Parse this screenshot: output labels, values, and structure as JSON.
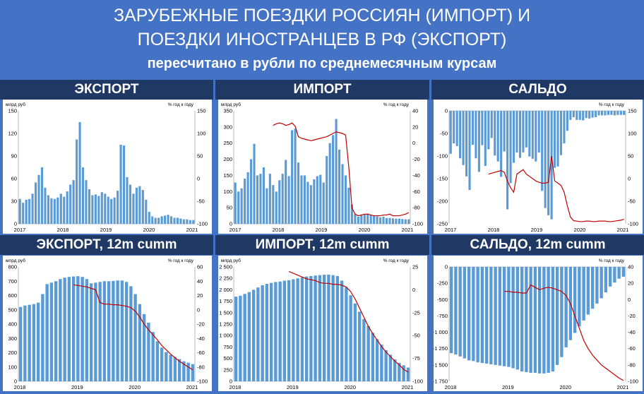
{
  "header": {
    "title_line1": "ЗАРУБЕЖНЫЕ ПОЕЗДКИ РОССИЯН (ИМПОРТ) И",
    "title_line2": "ПОЕЗДКИ ИНОСТРАНЦЕВ В РФ (ЭКСПОРТ)",
    "subtitle": "пересчитано в рубли по среднемесячным курсам"
  },
  "colors": {
    "background": "#4472c4",
    "section_bar": "#1f3864",
    "bars": "#5b9bd5",
    "line": "#c00000"
  },
  "chart_data": [
    {
      "id": "export-monthly",
      "type": "bar",
      "title": "ЭКСПОРТ",
      "ylabel_left": "млрд руб",
      "ylabel_right": "% год к году",
      "xticks": [
        "2017",
        "2018",
        "2019",
        "2020",
        "2021"
      ],
      "ylim": [
        0,
        150
      ],
      "yticks": [
        "0",
        "30",
        "60",
        "90",
        "120",
        "150"
      ],
      "ylim_right": [
        -100,
        150
      ],
      "yticks_right": [
        "-100",
        "-50",
        "0",
        "50",
        "100",
        "150"
      ],
      "series": [
        {
          "kind": "bar",
          "values": [
            33,
            28,
            32,
            33,
            40,
            55,
            65,
            75,
            48,
            38,
            34,
            33,
            35,
            40,
            36,
            43,
            52,
            58,
            112,
            135,
            75,
            58,
            46,
            38,
            39,
            37,
            42,
            40,
            36,
            33,
            35,
            44,
            105,
            104,
            62,
            52,
            40,
            48,
            50,
            45,
            32,
            16,
            10,
            8,
            8,
            10,
            11,
            12,
            10,
            8,
            8,
            7,
            6,
            6,
            5,
            5
          ]
        },
        {
          "kind": "line",
          "axis": "right",
          "values": [
            null,
            null,
            null,
            null,
            null,
            null,
            null,
            null,
            null,
            null,
            null,
            null,
            null,
            null,
            null,
            null,
            null,
            null,
            null,
            null,
            null,
            null,
            null,
            null,
            null,
            null,
            null,
            null,
            null,
            null,
            null,
            null,
            null,
            null,
            null,
            null,
            null,
            null,
            null,
            null,
            null,
            null,
            null,
            null,
            null,
            null,
            null,
            null,
            null,
            null,
            null,
            null,
            null,
            null,
            null,
            null
          ]
        }
      ]
    },
    {
      "id": "import-monthly",
      "type": "bar",
      "title": "ИМПОРТ",
      "ylabel_left": "млрд руб",
      "ylabel_right": "% год к году",
      "xticks": [
        "2017",
        "2018",
        "2019",
        "2020",
        "2021"
      ],
      "ylim": [
        0,
        350
      ],
      "yticks": [
        "0",
        "50",
        "100",
        "150",
        "200",
        "250",
        "300",
        "350"
      ],
      "ylim_right": [
        -100,
        40
      ],
      "yticks_right": [
        "-100",
        "-80",
        "-60",
        "-40",
        "-20",
        "0",
        "20",
        "40"
      ],
      "series": [
        {
          "kind": "bar",
          "values": [
            128,
            100,
            110,
            140,
            160,
            200,
            248,
            150,
            155,
            175,
            110,
            155,
            120,
            100,
            135,
            155,
            198,
            148,
            290,
            295,
            190,
            150,
            150,
            130,
            120,
            138,
            148,
            152,
            128,
            210,
            250,
            275,
            325,
            230,
            185,
            150,
            112,
            60,
            30,
            22,
            28,
            30,
            32,
            28,
            25,
            23,
            20,
            22,
            18,
            18,
            17,
            16,
            16,
            15,
            14,
            14
          ]
        },
        {
          "kind": "line",
          "axis": "right",
          "values": [
            null,
            null,
            null,
            null,
            null,
            null,
            null,
            null,
            null,
            null,
            null,
            null,
            22,
            24,
            25,
            24,
            22,
            23,
            25,
            21,
            8,
            6,
            5,
            4,
            3,
            4,
            5,
            6,
            7,
            8,
            10,
            12,
            14,
            13,
            12,
            10,
            -30,
            -80,
            -88,
            -90,
            -89,
            -88,
            -88,
            -89,
            -90,
            -90,
            -90,
            -89,
            -89,
            -88,
            -90,
            -90,
            -90,
            -89,
            -88,
            -86
          ]
        }
      ]
    },
    {
      "id": "saldo-monthly",
      "type": "bar",
      "title": "САЛЬДО",
      "ylabel_right": "% год к году",
      "xticks": [
        "2017",
        "2018",
        "2019",
        "2020",
        "2021"
      ],
      "ylim": [
        -250,
        0
      ],
      "yticks": [
        "0",
        "-50",
        "-100",
        "-150",
        "-200",
        "-250"
      ],
      "ylim_right": [
        -100,
        150
      ],
      "yticks_right": [
        "-100",
        "-50",
        "0",
        "50",
        "100",
        "150"
      ],
      "series": [
        {
          "kind": "bar",
          "values": [
            -95,
            -72,
            -78,
            -105,
            -120,
            -145,
            -175,
            -75,
            -105,
            -135,
            -76,
            -122,
            -85,
            -60,
            -99,
            -112,
            -146,
            -90,
            -218,
            -160,
            -115,
            -92,
            -104,
            -92,
            -81,
            -101,
            -106,
            -112,
            -92,
            -177,
            -215,
            -231,
            -240,
            -126,
            -123,
            -98,
            -72,
            -44,
            -20,
            -14,
            -20,
            -20,
            -21,
            -16,
            -17,
            -15,
            -14,
            -10,
            -10,
            -10,
            -9,
            -9,
            -10,
            -9,
            -9,
            -9
          ]
        },
        {
          "kind": "line",
          "axis": "right",
          "values": [
            null,
            null,
            null,
            null,
            null,
            null,
            null,
            null,
            null,
            null,
            null,
            null,
            10,
            12,
            14,
            16,
            18,
            14,
            -5,
            -20,
            -30,
            10,
            15,
            20,
            10,
            5,
            0,
            -5,
            -8,
            -10,
            -10,
            -8,
            50,
            -5,
            -10,
            -15,
            -30,
            -60,
            -85,
            -93,
            -94,
            -95,
            -95,
            -94,
            -94,
            -95,
            -95,
            -94,
            -94,
            -94,
            -95,
            -95,
            -94,
            -93,
            -92,
            -90
          ]
        }
      ]
    },
    {
      "id": "export-12m",
      "type": "bar",
      "title": "ЭКСПОРТ, 12m cumm",
      "ylabel_left": "млрд руб",
      "ylabel_right": "% год к году",
      "xticks": [
        "2018",
        "2019",
        "2020",
        "2021"
      ],
      "ylim": [
        0,
        800
      ],
      "yticks": [
        "0",
        "100",
        "200",
        "300",
        "400",
        "500",
        "600",
        "700",
        "800"
      ],
      "ylim_right": [
        -100,
        60
      ],
      "yticks_right": [
        "-100",
        "-80",
        "-60",
        "-40",
        "-20",
        "0",
        "20",
        "40",
        "60"
      ],
      "series": [
        {
          "kind": "bar",
          "values": [
            520,
            530,
            535,
            540,
            550,
            610,
            680,
            690,
            700,
            715,
            725,
            730,
            733,
            735,
            730,
            715,
            685,
            690,
            695,
            700,
            700,
            702,
            705,
            705,
            695,
            665,
            610,
            540,
            470,
            410,
            345,
            280,
            235,
            205,
            185,
            170,
            155,
            140,
            130,
            120
          ]
        },
        {
          "kind": "line",
          "axis": "right",
          "values": [
            null,
            null,
            null,
            null,
            null,
            null,
            null,
            null,
            null,
            null,
            null,
            null,
            35,
            34,
            33,
            32,
            30,
            28,
            10,
            8,
            8,
            7,
            7,
            6,
            5,
            3,
            -2,
            -10,
            -20,
            -28,
            -35,
            -42,
            -50,
            -56,
            -62,
            -67,
            -72,
            -76,
            -80,
            -84
          ]
        }
      ]
    },
    {
      "id": "import-12m",
      "type": "bar",
      "title": "ИМПОРТ, 12m cumm",
      "ylabel_left": "млрд руб",
      "ylabel_right": "% год к году",
      "xticks": [
        "2018",
        "2019",
        "2020",
        "2021"
      ],
      "ylim": [
        0,
        2500
      ],
      "yticks": [
        "0",
        "250",
        "500",
        "750",
        "1 000",
        "1 250",
        "1 500",
        "1 750",
        "2 000",
        "2 250",
        "2 500"
      ],
      "ylim_right": [
        -100,
        25
      ],
      "yticks_right": [
        "-100",
        "-75",
        "-50",
        "-25",
        "0",
        "25"
      ],
      "series": [
        {
          "kind": "bar",
          "values": [
            1850,
            1870,
            1910,
            1950,
            2000,
            2050,
            2100,
            2130,
            2150,
            2170,
            2180,
            2200,
            2210,
            2230,
            2250,
            2270,
            2290,
            2300,
            2310,
            2320,
            2330,
            2330,
            2320,
            2300,
            2200,
            2050,
            1880,
            1700,
            1520,
            1360,
            1210,
            1060,
            920,
            800,
            680,
            580,
            480,
            400,
            350,
            300
          ]
        },
        {
          "kind": "line",
          "axis": "right",
          "values": [
            null,
            null,
            null,
            null,
            null,
            null,
            null,
            null,
            null,
            null,
            null,
            null,
            20,
            18,
            16,
            14,
            12,
            11,
            10,
            8,
            7,
            7,
            6,
            6,
            5,
            3,
            -2,
            -10,
            -20,
            -30,
            -40,
            -48,
            -55,
            -62,
            -68,
            -73,
            -78,
            -82,
            -87,
            -90
          ]
        }
      ]
    },
    {
      "id": "saldo-12m",
      "type": "bar",
      "title": "САЛЬДО, 12m cumm",
      "ylabel_right": "% год к году",
      "xticks": [
        "2018",
        "2019",
        "2020",
        "2021"
      ],
      "ylim": [
        -1750,
        0
      ],
      "yticks": [
        "0",
        "-250",
        "-500",
        "-750",
        "-1 000",
        "-1 250",
        "-1 500",
        "-1 750"
      ],
      "ylim_right": [
        -100,
        40
      ],
      "yticks_right": [
        "-100",
        "-80",
        "-60",
        "-40",
        "-20",
        "0",
        "20",
        "40"
      ],
      "series": [
        {
          "kind": "bar",
          "values": [
            -1320,
            -1340,
            -1370,
            -1400,
            -1430,
            -1440,
            -1460,
            -1470,
            -1480,
            -1490,
            -1500,
            -1510,
            -1520,
            -1530,
            -1550,
            -1570,
            -1600,
            -1610,
            -1620,
            -1620,
            -1630,
            -1630,
            -1620,
            -1600,
            -1500,
            -1380,
            -1230,
            -1120,
            -1010,
            -910,
            -820,
            -730,
            -640,
            -560,
            -480,
            -390,
            -300,
            -240,
            -180,
            -150
          ]
        },
        {
          "kind": "line",
          "axis": "right",
          "values": [
            null,
            null,
            null,
            null,
            null,
            null,
            null,
            null,
            null,
            null,
            null,
            null,
            10,
            10,
            9,
            9,
            8,
            8,
            18,
            15,
            12,
            14,
            15,
            14,
            12,
            10,
            5,
            -5,
            -20,
            -35,
            -50,
            -60,
            -68,
            -74,
            -80,
            -84,
            -88,
            -92,
            -96,
            -99
          ]
        }
      ]
    }
  ]
}
